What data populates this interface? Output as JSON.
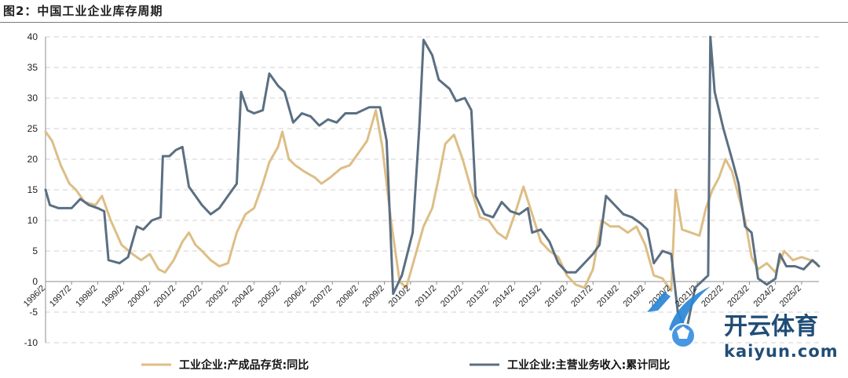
{
  "figure_title": "图2：中国工业企业库存周期",
  "colors": {
    "inventory": "#DDBE86",
    "revenue": "#5B6F82",
    "grid": "#D0D0D0",
    "axis": "#8C8C8C"
  },
  "chart_data": {
    "type": "line",
    "ylim": [
      -10,
      40
    ],
    "yticks": [
      -10,
      -5,
      0,
      5,
      10,
      15,
      20,
      25,
      30,
      35,
      40
    ],
    "x_range": [
      "1996-02",
      "2025-10"
    ],
    "xticks": [
      "1996/2",
      "1997/2",
      "1998/2",
      "1999/2",
      "2000/2",
      "2001/2",
      "2002/2",
      "2003/2",
      "2004/2",
      "2005/2",
      "2006/2",
      "2007/2",
      "2008/2",
      "2009/2",
      "2010/2",
      "2011/2",
      "2012/2",
      "2013/2",
      "2014/2",
      "2015/2",
      "2016/2",
      "2017/2",
      "2018/2",
      "2019/2",
      "2020/2",
      "2021/2",
      "2022/2",
      "2023/2",
      "2024/2",
      "2025/2"
    ],
    "grid": "horizontal-dashed",
    "legend_position": "bottom",
    "series": [
      {
        "name": "工业企业:产成品存货:同比",
        "color": "#DDBE86",
        "points": [
          [
            "1996-02",
            24.5
          ],
          [
            "1996-05",
            23
          ],
          [
            "1996-09",
            19
          ],
          [
            "1997-01",
            16
          ],
          [
            "1997-04",
            15
          ],
          [
            "1997-08",
            13
          ],
          [
            "1998-01",
            12.5
          ],
          [
            "1998-04",
            14
          ],
          [
            "1998-08",
            10
          ],
          [
            "1999-01",
            6
          ],
          [
            "1999-06",
            4.5
          ],
          [
            "1999-10",
            3.5
          ],
          [
            "2000-02",
            4.5
          ],
          [
            "2000-06",
            2
          ],
          [
            "2000-09",
            1.5
          ],
          [
            "2001-01",
            3.5
          ],
          [
            "2001-05",
            6.5
          ],
          [
            "2001-08",
            8
          ],
          [
            "2001-11",
            6
          ],
          [
            "2002-02",
            5
          ],
          [
            "2002-06",
            3.5
          ],
          [
            "2002-10",
            2.5
          ],
          [
            "2003-02",
            3
          ],
          [
            "2003-06",
            8
          ],
          [
            "2003-10",
            11
          ],
          [
            "2004-02",
            12
          ],
          [
            "2004-06",
            16
          ],
          [
            "2004-09",
            19.5
          ],
          [
            "2005-01",
            22
          ],
          [
            "2005-03",
            24.5
          ],
          [
            "2005-06",
            20
          ],
          [
            "2005-09",
            19
          ],
          [
            "2006-01",
            18
          ],
          [
            "2006-06",
            17
          ],
          [
            "2006-09",
            16
          ],
          [
            "2007-01",
            17
          ],
          [
            "2007-06",
            18.5
          ],
          [
            "2007-10",
            19
          ],
          [
            "2008-02",
            21
          ],
          [
            "2008-06",
            23
          ],
          [
            "2008-10",
            28
          ],
          [
            "2009-01",
            22
          ],
          [
            "2009-05",
            10
          ],
          [
            "2009-09",
            0
          ],
          [
            "2009-12",
            -1
          ],
          [
            "2010-04",
            4
          ],
          [
            "2010-08",
            9
          ],
          [
            "2010-12",
            12
          ],
          [
            "2011-03",
            17
          ],
          [
            "2011-06",
            22.5
          ],
          [
            "2011-10",
            24
          ],
          [
            "2012-02",
            20
          ],
          [
            "2012-06",
            15
          ],
          [
            "2012-10",
            10.5
          ],
          [
            "2013-02",
            10
          ],
          [
            "2013-06",
            8
          ],
          [
            "2013-10",
            7
          ],
          [
            "2014-02",
            11
          ],
          [
            "2014-06",
            15.5
          ],
          [
            "2014-10",
            11
          ],
          [
            "2015-02",
            6.5
          ],
          [
            "2015-06",
            5
          ],
          [
            "2015-10",
            4
          ],
          [
            "2016-02",
            1
          ],
          [
            "2016-06",
            -0.5
          ],
          [
            "2016-10",
            -1
          ],
          [
            "2017-02",
            2
          ],
          [
            "2017-06",
            10
          ],
          [
            "2017-10",
            9
          ],
          [
            "2018-02",
            9
          ],
          [
            "2018-06",
            8
          ],
          [
            "2018-10",
            9
          ],
          [
            "2019-02",
            6
          ],
          [
            "2019-06",
            1
          ],
          [
            "2019-10",
            0.5
          ],
          [
            "2020-02",
            -1.5
          ],
          [
            "2020-04",
            15
          ],
          [
            "2020-07",
            8.5
          ],
          [
            "2020-11",
            8
          ],
          [
            "2021-03",
            7.5
          ],
          [
            "2021-06",
            12
          ],
          [
            "2021-09",
            15
          ],
          [
            "2021-12",
            17
          ],
          [
            "2022-03",
            20
          ],
          [
            "2022-06",
            18
          ],
          [
            "2022-09",
            14
          ],
          [
            "2022-12",
            10
          ],
          [
            "2023-03",
            4
          ],
          [
            "2023-06",
            2
          ],
          [
            "2023-10",
            3
          ],
          [
            "2024-02",
            1.5
          ],
          [
            "2024-06",
            5
          ],
          [
            "2024-10",
            3.5
          ],
          [
            "2025-02",
            4
          ],
          [
            "2025-06",
            3.5
          ],
          [
            "2025-09",
            3
          ]
        ]
      },
      {
        "name": "工业企业:主营业务收入:累计同比",
        "color": "#5B6F82",
        "points": [
          [
            "1996-02",
            15
          ],
          [
            "1996-04",
            12.5
          ],
          [
            "1996-08",
            12
          ],
          [
            "1997-02",
            12
          ],
          [
            "1997-06",
            13.5
          ],
          [
            "1997-10",
            12.5
          ],
          [
            "1998-02",
            12
          ],
          [
            "1998-05",
            11.5
          ],
          [
            "1998-07",
            3.5
          ],
          [
            "1998-12",
            3
          ],
          [
            "1999-04",
            4
          ],
          [
            "1999-08",
            9
          ],
          [
            "1999-11",
            8.5
          ],
          [
            "2000-03",
            10
          ],
          [
            "2000-07",
            10.5
          ],
          [
            "2000-08",
            20.5
          ],
          [
            "2000-11",
            20.5
          ],
          [
            "2001-02",
            21.5
          ],
          [
            "2001-05",
            22
          ],
          [
            "2001-08",
            15.5
          ],
          [
            "2001-11",
            14
          ],
          [
            "2002-02",
            12.5
          ],
          [
            "2002-06",
            11
          ],
          [
            "2002-10",
            12
          ],
          [
            "2003-02",
            14
          ],
          [
            "2003-06",
            16
          ],
          [
            "2003-08",
            31
          ],
          [
            "2003-11",
            28
          ],
          [
            "2004-02",
            27.5
          ],
          [
            "2004-06",
            28
          ],
          [
            "2004-09",
            34
          ],
          [
            "2005-01",
            32
          ],
          [
            "2005-04",
            31
          ],
          [
            "2005-08",
            26
          ],
          [
            "2005-12",
            27.5
          ],
          [
            "2006-04",
            27
          ],
          [
            "2006-08",
            25.5
          ],
          [
            "2006-12",
            26.5
          ],
          [
            "2007-04",
            26
          ],
          [
            "2007-08",
            27.5
          ],
          [
            "2008-01",
            27.5
          ],
          [
            "2008-07",
            28.5
          ],
          [
            "2008-12",
            28.5
          ],
          [
            "2009-03",
            23
          ],
          [
            "2009-06",
            -2
          ],
          [
            "2009-10",
            1
          ],
          [
            "2010-03",
            8
          ],
          [
            "2010-06",
            25
          ],
          [
            "2010-08",
            39.5
          ],
          [
            "2010-12",
            37
          ],
          [
            "2011-03",
            33
          ],
          [
            "2011-08",
            31.5
          ],
          [
            "2011-11",
            29.5
          ],
          [
            "2012-03",
            30
          ],
          [
            "2012-06",
            28
          ],
          [
            "2012-08",
            14
          ],
          [
            "2012-12",
            11
          ],
          [
            "2013-04",
            10.5
          ],
          [
            "2013-08",
            13
          ],
          [
            "2013-12",
            11.5
          ],
          [
            "2014-04",
            11
          ],
          [
            "2014-08",
            12
          ],
          [
            "2014-10",
            8
          ],
          [
            "2015-02",
            8.5
          ],
          [
            "2015-06",
            6.5
          ],
          [
            "2015-10",
            3
          ],
          [
            "2016-02",
            1.5
          ],
          [
            "2016-06",
            1.5
          ],
          [
            "2016-10",
            3
          ],
          [
            "2017-02",
            4.5
          ],
          [
            "2017-05",
            6
          ],
          [
            "2017-08",
            14
          ],
          [
            "2017-12",
            12.5
          ],
          [
            "2018-04",
            11
          ],
          [
            "2018-08",
            10.5
          ],
          [
            "2018-12",
            9.5
          ],
          [
            "2019-03",
            8.5
          ],
          [
            "2019-06",
            3
          ],
          [
            "2019-10",
            5
          ],
          [
            "2020-02",
            4.5
          ],
          [
            "2020-05",
            -5
          ],
          [
            "2020-09",
            -8
          ],
          [
            "2021-01",
            -1
          ],
          [
            "2021-04",
            0
          ],
          [
            "2021-07",
            1
          ],
          [
            "2021-08",
            40
          ],
          [
            "2021-10",
            31
          ],
          [
            "2022-02",
            25
          ],
          [
            "2022-06",
            20
          ],
          [
            "2022-09",
            16
          ],
          [
            "2022-12",
            9
          ],
          [
            "2023-03",
            8
          ],
          [
            "2023-06",
            0.5
          ],
          [
            "2023-10",
            -0.5
          ],
          [
            "2024-02",
            0.5
          ],
          [
            "2024-04",
            4.5
          ],
          [
            "2024-07",
            2.5
          ],
          [
            "2024-11",
            2.5
          ],
          [
            "2025-03",
            2
          ],
          [
            "2025-07",
            3.5
          ],
          [
            "2025-10",
            2.5
          ]
        ]
      }
    ]
  },
  "watermark": {
    "brand": "开云体育",
    "url": "kaiyun.com"
  }
}
